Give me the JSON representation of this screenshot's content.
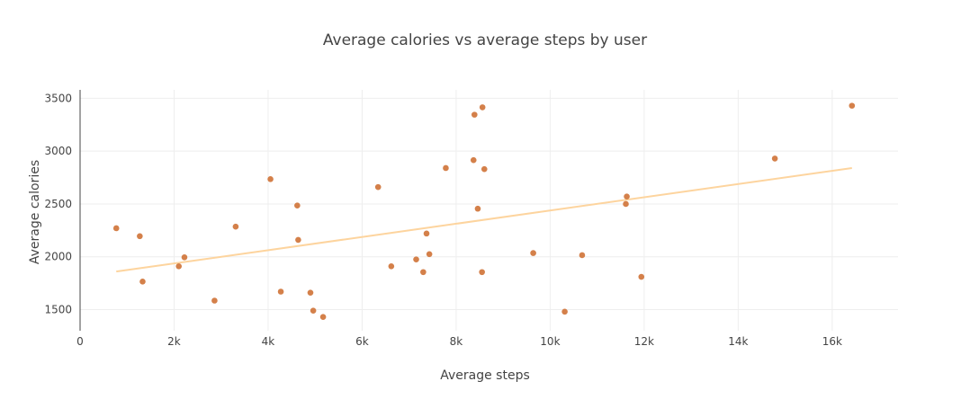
{
  "chart_data": {
    "type": "scatter",
    "title": "Average calories vs average steps by user",
    "xlabel": "Average steps",
    "ylabel": "Average calories",
    "xlim": [
      0,
      17400
    ],
    "ylim": [
      1300,
      3580
    ],
    "x_ticks": [
      0,
      2000,
      4000,
      6000,
      8000,
      10000,
      12000,
      14000,
      16000
    ],
    "x_tick_labels": [
      "0",
      "2k",
      "4k",
      "6k",
      "8k",
      "10k",
      "12k",
      "14k",
      "16k"
    ],
    "y_ticks": [
      1500,
      2000,
      2500,
      3000,
      3500
    ],
    "y_tick_labels": [
      "1500",
      "2000",
      "2500",
      "3000",
      "3500"
    ],
    "grid": true,
    "colors": {
      "marker": "#d4804a",
      "trendline": "#fdd49e",
      "grid": "#eeeeee",
      "axis": "#444444"
    },
    "series": [
      {
        "points": [
          {
            "x": 770,
            "y": 2270
          },
          {
            "x": 1270,
            "y": 2195
          },
          {
            "x": 1330,
            "y": 1765
          },
          {
            "x": 2100,
            "y": 1910
          },
          {
            "x": 2220,
            "y": 1995
          },
          {
            "x": 2860,
            "y": 1585
          },
          {
            "x": 3310,
            "y": 2285
          },
          {
            "x": 4050,
            "y": 2735
          },
          {
            "x": 4270,
            "y": 1670
          },
          {
            "x": 4620,
            "y": 2485
          },
          {
            "x": 4640,
            "y": 2160
          },
          {
            "x": 4900,
            "y": 1660
          },
          {
            "x": 4960,
            "y": 1490
          },
          {
            "x": 5170,
            "y": 1430
          },
          {
            "x": 6340,
            "y": 2660
          },
          {
            "x": 6620,
            "y": 1910
          },
          {
            "x": 7150,
            "y": 1975
          },
          {
            "x": 7300,
            "y": 1855
          },
          {
            "x": 7370,
            "y": 2220
          },
          {
            "x": 7430,
            "y": 2025
          },
          {
            "x": 7780,
            "y": 2840
          },
          {
            "x": 8370,
            "y": 2915
          },
          {
            "x": 8390,
            "y": 3345
          },
          {
            "x": 8460,
            "y": 2455
          },
          {
            "x": 8550,
            "y": 1855
          },
          {
            "x": 8560,
            "y": 3415
          },
          {
            "x": 8600,
            "y": 2830
          },
          {
            "x": 9640,
            "y": 2035
          },
          {
            "x": 10310,
            "y": 1480
          },
          {
            "x": 10680,
            "y": 2015
          },
          {
            "x": 11610,
            "y": 2500
          },
          {
            "x": 11630,
            "y": 2570
          },
          {
            "x": 11940,
            "y": 1810
          },
          {
            "x": 14780,
            "y": 2930
          },
          {
            "x": 16420,
            "y": 3430
          }
        ]
      }
    ],
    "trendline": {
      "x": [
        770,
        16420
      ],
      "y": [
        1860,
        2840
      ]
    }
  }
}
